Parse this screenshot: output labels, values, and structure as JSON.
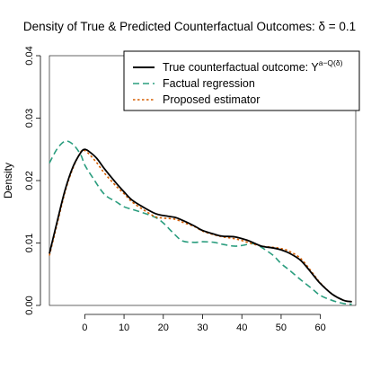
{
  "chart_data": {
    "type": "line",
    "title": "Density of True & Predicted Counterfactual Outcomes: δ = 0.1",
    "xlabel": "",
    "ylabel": "Density",
    "xlim": [
      -9,
      69
    ],
    "ylim": [
      0,
      0.04
    ],
    "xticks": [
      0,
      10,
      20,
      30,
      40,
      50,
      60
    ],
    "yticks": [
      0.0,
      0.01,
      0.02,
      0.03,
      0.04
    ],
    "ytick_labels": [
      "0.00",
      "0.01",
      "0.02",
      "0.03",
      "0.04"
    ],
    "grid": false,
    "legend_position": "top-right",
    "series": [
      {
        "name": "True counterfactual outcome: Y",
        "name_superscript": "a−Q(δ)",
        "color": "#000000",
        "dash": "solid",
        "x": [
          -9,
          -7,
          -5,
          -3,
          -1,
          0,
          1,
          3,
          5,
          8,
          10,
          12,
          15,
          18,
          20,
          23,
          25,
          28,
          30,
          33,
          35,
          38,
          40,
          42,
          45,
          48,
          50,
          52,
          55,
          58,
          60,
          63,
          66,
          68
        ],
        "y": [
          0.0083,
          0.0135,
          0.0185,
          0.0222,
          0.0245,
          0.025,
          0.0247,
          0.0236,
          0.0219,
          0.0196,
          0.0182,
          0.0169,
          0.0157,
          0.0147,
          0.0144,
          0.0141,
          0.0136,
          0.0127,
          0.012,
          0.0114,
          0.0111,
          0.011,
          0.0107,
          0.0103,
          0.0095,
          0.0092,
          0.0089,
          0.0084,
          0.0072,
          0.005,
          0.0035,
          0.0018,
          0.0008,
          0.0006
        ]
      },
      {
        "name": "Factual regression",
        "color": "#2a9d7e",
        "dash": "dashed",
        "x": [
          -9,
          -7,
          -5,
          -3,
          -1,
          0,
          2,
          5,
          8,
          10,
          12,
          15,
          18,
          20,
          23,
          25,
          28,
          30,
          33,
          35,
          38,
          40,
          43,
          45,
          48,
          50,
          52,
          55,
          58,
          60,
          63,
          66,
          68
        ],
        "y": [
          0.0228,
          0.0251,
          0.0263,
          0.0258,
          0.0241,
          0.0225,
          0.0205,
          0.0178,
          0.0166,
          0.0158,
          0.0154,
          0.0148,
          0.0141,
          0.0132,
          0.0113,
          0.0103,
          0.0101,
          0.0102,
          0.0101,
          0.0098,
          0.0095,
          0.0096,
          0.0099,
          0.0093,
          0.008,
          0.0067,
          0.0057,
          0.0041,
          0.0026,
          0.0016,
          0.0008,
          0.0003,
          0.0002
        ]
      },
      {
        "name": "Proposed estimator",
        "color": "#d55e00",
        "dash": "dotted",
        "x": [
          -9,
          -7,
          -5,
          -3,
          -1,
          0,
          1,
          3,
          5,
          8,
          10,
          12,
          15,
          18,
          20,
          23,
          25,
          28,
          30,
          33,
          35,
          38,
          40,
          42,
          45,
          48,
          50,
          52,
          55,
          58,
          60,
          63,
          66,
          68
        ],
        "y": [
          0.008,
          0.0131,
          0.0182,
          0.022,
          0.0246,
          0.0248,
          0.0243,
          0.0229,
          0.0212,
          0.0191,
          0.0179,
          0.0166,
          0.0153,
          0.0142,
          0.014,
          0.0138,
          0.0133,
          0.0126,
          0.0119,
          0.0113,
          0.011,
          0.0107,
          0.0104,
          0.01,
          0.0095,
          0.0093,
          0.0091,
          0.0087,
          0.0075,
          0.0052,
          0.0036,
          0.0018,
          0.0008,
          0.0006
        ]
      }
    ]
  }
}
